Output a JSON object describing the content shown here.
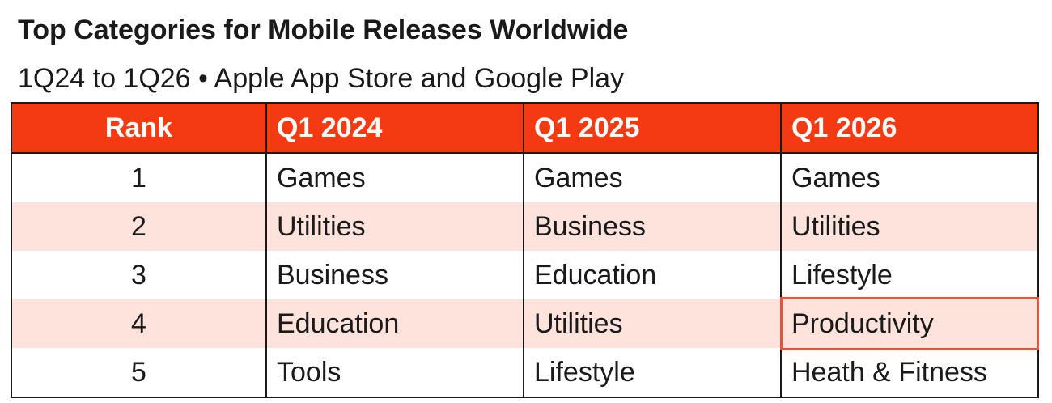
{
  "chart_data": {
    "type": "table",
    "title": "Top Categories for Mobile Releases Worldwide",
    "subtitle": "1Q24 to 1Q26 • Apple App Store and Google Play",
    "columns": [
      "Rank",
      "Q1 2024",
      "Q1 2025",
      "Q1 2026"
    ],
    "rows": [
      [
        "1",
        "Games",
        "Games",
        "Games"
      ],
      [
        "2",
        "Utilities",
        "Business",
        "Utilities"
      ],
      [
        "3",
        "Business",
        "Education",
        "Lifestyle"
      ],
      [
        "4",
        "Education",
        "Utilities",
        "Productivity"
      ],
      [
        "5",
        "Tools",
        "Lifestyle",
        "Heath & Fitness"
      ]
    ],
    "highlighted_cell": {
      "row": 4,
      "column": "Q1 2026",
      "value": "Productivity"
    }
  },
  "colors": {
    "header_background": "#f43a12",
    "header_text": "#ffffff",
    "alternate_row": "#fde3dc",
    "highlight_border": "#e0563a"
  }
}
